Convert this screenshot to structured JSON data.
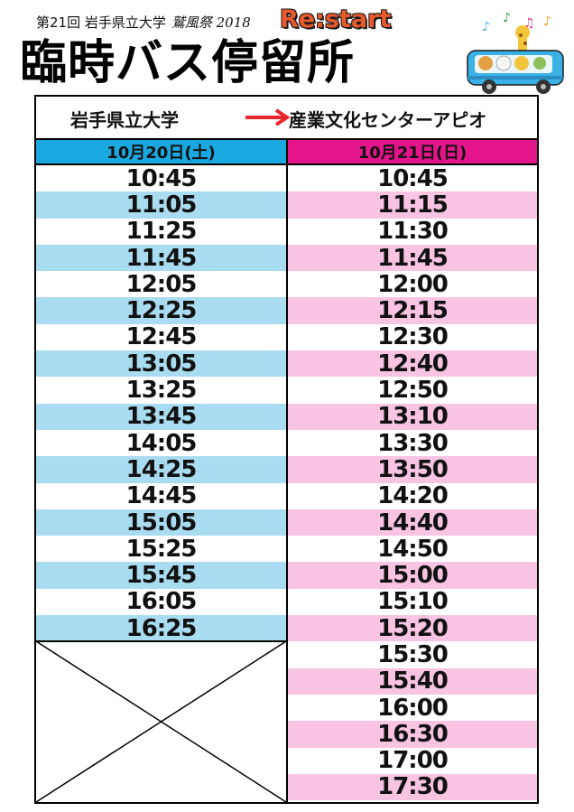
{
  "header": {
    "event_info": "第21回 岩手県立大学",
    "festival_name": "鷲風祭 2018",
    "logo_text": "Re:start",
    "title": "臨時バス停留所"
  },
  "route": {
    "from": "岩手県立大学",
    "to": "産業文化センターアピオ"
  },
  "days": [
    {
      "label": "10月20日(土)",
      "times": [
        "10:45",
        "11:05",
        "11:25",
        "11:45",
        "12:05",
        "12:25",
        "12:45",
        "13:05",
        "13:25",
        "13:45",
        "14:05",
        "14:25",
        "14:45",
        "15:05",
        "15:25",
        "15:45",
        "16:05",
        "16:25"
      ]
    },
    {
      "label": "10月21日(日)",
      "times": [
        "10:45",
        "11:15",
        "11:30",
        "11:45",
        "12:00",
        "12:15",
        "12:30",
        "12:40",
        "12:50",
        "13:10",
        "13:30",
        "13:50",
        "14:20",
        "14:40",
        "14:50",
        "15:00",
        "15:10",
        "15:20",
        "15:30",
        "15:40",
        "16:00",
        "16:30",
        "17:00",
        "17:30"
      ]
    }
  ],
  "colors": {
    "sat_header": "#1aa8e0",
    "sat_stripe": "#a9dcf0",
    "sun_header": "#e4158a",
    "sun_stripe": "#f8c4e2",
    "arrow": "#e8262d"
  }
}
